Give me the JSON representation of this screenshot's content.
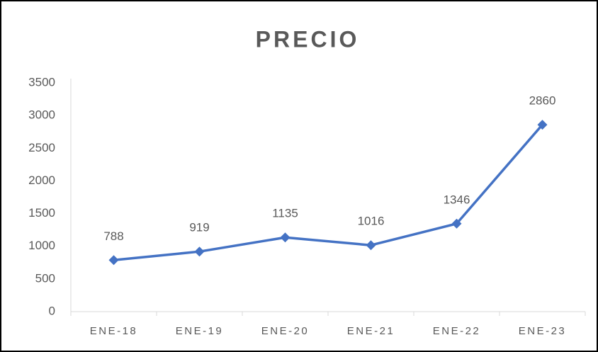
{
  "chart_data": {
    "type": "line",
    "title": "PRECIO",
    "categories": [
      "ENE-18",
      "ENE-19",
      "ENE-20",
      "ENE-21",
      "ENE-22",
      "ENE-23"
    ],
    "values": [
      788,
      919,
      1135,
      1016,
      1346,
      2860
    ],
    "color": "#4472c4",
    "ylim": [
      0,
      3500
    ],
    "yticks": [
      0,
      500,
      1000,
      1500,
      2000,
      2500,
      3000,
      3500
    ],
    "grid": false
  }
}
